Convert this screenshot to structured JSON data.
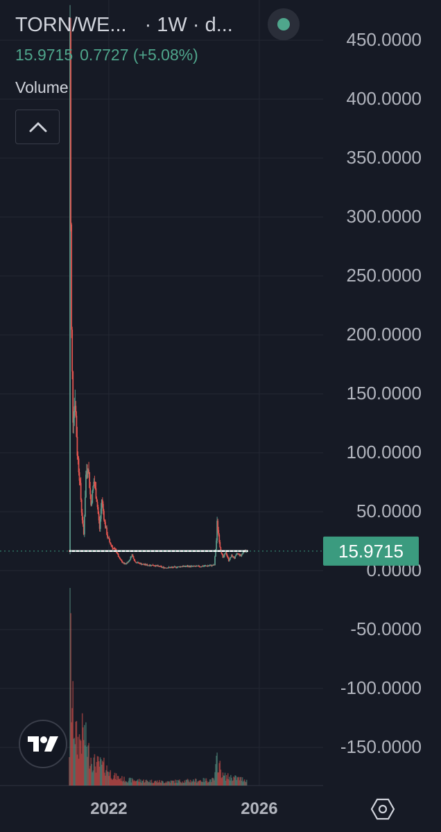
{
  "header": {
    "symbol": "TORN/WE...",
    "interval": "· 1W · d...",
    "last_price": "15.9715",
    "change": "0.7727 (+5.08%)",
    "volume_label": "Volume",
    "status_color": "#4fa68c"
  },
  "colors": {
    "background": "#161a25",
    "grid": "#242834",
    "up": "#5b9a8b",
    "down": "#e0544f",
    "price_tag": "#3b9b7f",
    "axis_text": "#b2b5be"
  },
  "icons": {
    "collapse": "chevron-up-icon",
    "logo": "tradingview-logo",
    "settings": "hexagon-settings-icon"
  },
  "chart_data": {
    "type": "candlestick",
    "interval": "1W",
    "ylim": [
      -170,
      475
    ],
    "y_ticks": [
      "450.0000",
      "400.0000",
      "350.0000",
      "300.0000",
      "250.0000",
      "200.0000",
      "150.0000",
      "100.0000",
      "50.0000",
      "0.0000",
      "-50.0000",
      "-100.0000",
      "-150.0000"
    ],
    "x_ticks": [
      "2022",
      "2026"
    ],
    "last_price_label": "15.9715",
    "last_price": 15.9715,
    "horizontal_line": 16,
    "grid": true,
    "price_path": [
      [
        "2020-12-14",
        16
      ],
      [
        "2020-12-21",
        460
      ],
      [
        "2020-12-28",
        290
      ],
      [
        "2021-01-04",
        200
      ],
      [
        "2021-01-18",
        130
      ],
      [
        "2021-02-08",
        145
      ],
      [
        "2021-03-01",
        100
      ],
      [
        "2021-03-22",
        80
      ],
      [
        "2021-04-12",
        50
      ],
      [
        "2021-05-03",
        30
      ],
      [
        "2021-05-24",
        80
      ],
      [
        "2021-06-14",
        90
      ],
      [
        "2021-07-12",
        55
      ],
      [
        "2021-08-09",
        75
      ],
      [
        "2021-09-06",
        60
      ],
      [
        "2021-10-04",
        35
      ],
      [
        "2021-10-25",
        60
      ],
      [
        "2021-11-22",
        40
      ],
      [
        "2021-12-20",
        28
      ],
      [
        "2022-01-17",
        22
      ],
      [
        "2022-02-14",
        18
      ],
      [
        "2022-03-14",
        16
      ],
      [
        "2022-04-11",
        10
      ],
      [
        "2022-05-16",
        6
      ],
      [
        "2022-06-13",
        5
      ],
      [
        "2022-07-18",
        8
      ],
      [
        "2022-08-15",
        13
      ],
      [
        "2022-09-12",
        7
      ],
      [
        "2022-11-14",
        5
      ],
      [
        "2023-01-16",
        4
      ],
      [
        "2023-03-13",
        4
      ],
      [
        "2023-06-12",
        2
      ],
      [
        "2023-09-11",
        2
      ],
      [
        "2023-12-11",
        3
      ],
      [
        "2024-03-11",
        3
      ],
      [
        "2024-06-10",
        3
      ],
      [
        "2024-10-21",
        4
      ],
      [
        "2024-11-11",
        25
      ],
      [
        "2024-11-18",
        40
      ],
      [
        "2024-12-16",
        20
      ],
      [
        "2025-01-13",
        10
      ],
      [
        "2025-02-10",
        15
      ],
      [
        "2025-03-10",
        8
      ],
      [
        "2025-04-07",
        12
      ],
      [
        "2025-05-05",
        10
      ],
      [
        "2025-06-02",
        14
      ],
      [
        "2025-07-07",
        12
      ],
      [
        "2025-08-04",
        16
      ],
      [
        "2025-09-01",
        15.97
      ]
    ],
    "volume_path": [
      [
        "2020-12-14",
        0.2
      ],
      [
        "2020-12-21",
        1.0
      ],
      [
        "2021-01-04",
        0.45
      ],
      [
        "2021-02-01",
        0.32
      ],
      [
        "2021-03-01",
        0.22
      ],
      [
        "2021-05-03",
        0.28
      ],
      [
        "2021-06-14",
        0.18
      ],
      [
        "2021-08-09",
        0.12
      ],
      [
        "2021-11-22",
        0.1
      ],
      [
        "2022-02-14",
        0.05
      ],
      [
        "2022-06-13",
        0.03
      ],
      [
        "2023-06-12",
        0.02
      ],
      [
        "2024-10-21",
        0.03
      ],
      [
        "2024-11-18",
        0.14
      ],
      [
        "2025-01-13",
        0.05
      ],
      [
        "2025-09-01",
        0.03
      ]
    ]
  }
}
